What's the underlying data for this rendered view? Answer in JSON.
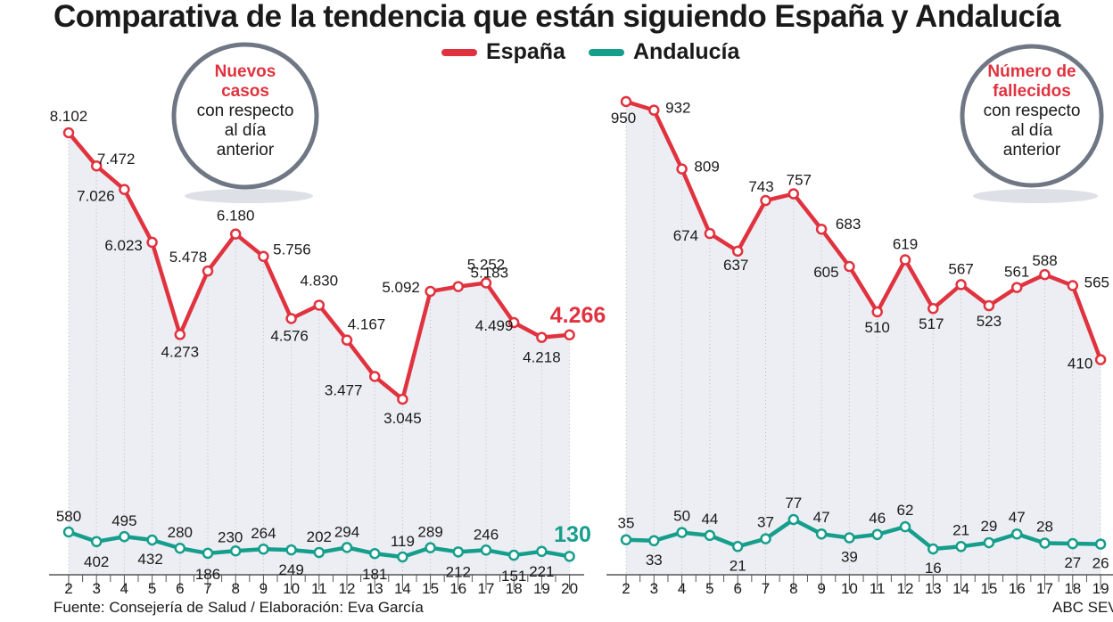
{
  "title": "Comparativa de la tendencia que están siguiendo España y Andalucía",
  "legend": [
    {
      "name": "España",
      "color": "#e0333f"
    },
    {
      "name": "Andalucía",
      "color": "#169e8c"
    }
  ],
  "colors": {
    "spain": "#e0333f",
    "andalucia": "#169e8c",
    "area": "#eceef3",
    "axis": "#555555",
    "circle_ring": "#707784"
  },
  "footer": {
    "source": "Fuente: Consejería de Salud / Elaboración: Eva García",
    "credit": "ABC SEV"
  },
  "chart_data": [
    {
      "type": "line",
      "badge": {
        "highlight": [
          "Nuevos",
          "casos"
        ],
        "text": [
          "con respecto",
          "al día",
          "anterior"
        ]
      },
      "x": [
        2,
        3,
        4,
        5,
        6,
        7,
        8,
        9,
        10,
        11,
        12,
        13,
        14,
        15,
        16,
        17,
        18,
        19,
        20
      ],
      "series": [
        {
          "name": "España",
          "values": [
            8102,
            7472,
            7026,
            6023,
            4273,
            5478,
            6180,
            5756,
            4576,
            4830,
            4167,
            3477,
            3045,
            5092,
            5183,
            5252,
            4499,
            4218,
            4266
          ],
          "labels": [
            "8.102",
            "7.472",
            "7.026",
            "6.023",
            "4.273",
            "5.478",
            "6.180",
            "5.756",
            "4.576",
            "4.830",
            "4.167",
            "3.477",
            "3.045",
            "5.092",
            "5.183",
            "5.252",
            "4.499",
            "4.218",
            "4.266"
          ]
        },
        {
          "name": "Andalucía",
          "values": [
            580,
            402,
            495,
            432,
            280,
            186,
            230,
            264,
            249,
            202,
            294,
            181,
            119,
            289,
            212,
            246,
            151,
            221,
            130
          ],
          "labels": [
            "580",
            "402",
            "495",
            "432",
            "280",
            "186",
            "230",
            "264",
            "249",
            "202",
            "294",
            "181",
            "119",
            "289",
            "212",
            "246",
            "151",
            "221",
            "130"
          ]
        }
      ]
    },
    {
      "type": "line",
      "badge": {
        "highlight": [
          "Número de",
          "fallecidos"
        ],
        "text": [
          "con respecto",
          "al día",
          "anterior"
        ]
      },
      "x": [
        2,
        3,
        4,
        5,
        6,
        7,
        8,
        9,
        10,
        11,
        12,
        13,
        14,
        15,
        16,
        17,
        18,
        19
      ],
      "series": [
        {
          "name": "España",
          "values": [
            950,
            932,
            809,
            674,
            637,
            743,
            757,
            683,
            605,
            510,
            619,
            517,
            567,
            523,
            561,
            588,
            565,
            410
          ],
          "labels": [
            "950",
            "932",
            "809",
            "674",
            "637",
            "743",
            "757",
            "683",
            "605",
            "510",
            "619",
            "517",
            "567",
            "523",
            "561",
            "588",
            "565",
            "410"
          ]
        },
        {
          "name": "Andalucía",
          "values": [
            35,
            33,
            50,
            44,
            21,
            37,
            77,
            47,
            39,
            46,
            62,
            16,
            21,
            29,
            47,
            28,
            27,
            26
          ],
          "labels": [
            "35",
            "33",
            "50",
            "44",
            "21",
            "37",
            "77",
            "47",
            "39",
            "46",
            "62",
            "16",
            "21",
            "29",
            "47",
            "28",
            "27",
            "26"
          ]
        }
      ]
    }
  ]
}
